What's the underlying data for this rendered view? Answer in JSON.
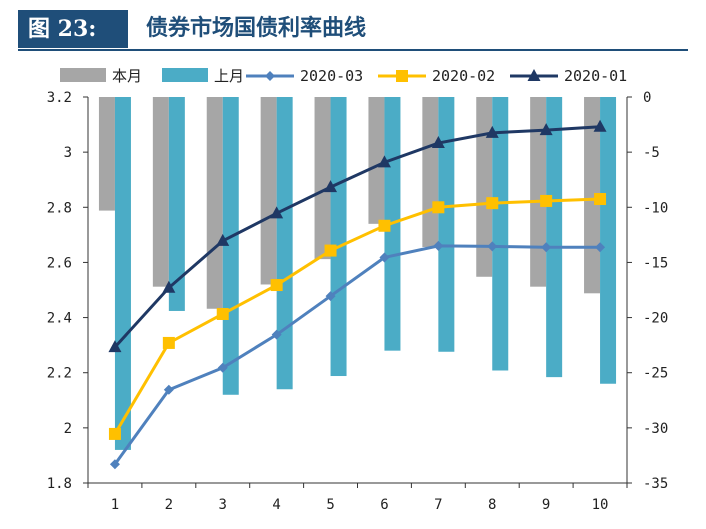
{
  "header": {
    "figure_label": "图 23:",
    "title": "债券市场国债利率曲线"
  },
  "chart_data": {
    "type": "bar+line",
    "categories": [
      "1",
      "2",
      "3",
      "4",
      "5",
      "6",
      "7",
      "8",
      "9",
      "10"
    ],
    "left_axis": {
      "min": 1.8,
      "max": 3.2,
      "step": 0.2,
      "tick_labels": [
        "1.8",
        "2",
        "2.2",
        "2.4",
        "2.6",
        "2.8",
        "3",
        "3.2"
      ]
    },
    "right_axis": {
      "min": -35,
      "max": 0,
      "step": 5,
      "tick_labels": [
        "-35",
        "-30",
        "-25",
        "-20",
        "-15",
        "-10",
        "-5",
        "0"
      ]
    },
    "bar_series": [
      {
        "name": "本月",
        "axis": "right",
        "color": "#a6a6a6",
        "values": [
          -10.3,
          -17.2,
          -19.2,
          -17.0,
          -14.7,
          -11.5,
          -13.6,
          -16.3,
          -17.2,
          -17.8
        ]
      },
      {
        "name": "上月",
        "axis": "right",
        "color": "#4bacc6",
        "values": [
          -32.0,
          -19.4,
          -27.0,
          -26.5,
          -25.3,
          -23.0,
          -23.1,
          -24.8,
          -25.4,
          -26.0
        ]
      }
    ],
    "line_series": [
      {
        "name": "2020-03",
        "axis": "left",
        "color": "#4f81bd",
        "marker": "diamond",
        "values": [
          1.868,
          2.138,
          2.218,
          2.338,
          2.478,
          2.618,
          2.66,
          2.658,
          2.655,
          2.655
        ]
      },
      {
        "name": "2020-02",
        "axis": "left",
        "color": "#ffc000",
        "marker": "square",
        "values": [
          1.978,
          2.308,
          2.413,
          2.518,
          2.643,
          2.733,
          2.8,
          2.815,
          2.823,
          2.83
        ]
      },
      {
        "name": "2020-01",
        "axis": "left",
        "color": "#1f3864",
        "marker": "triangle",
        "values": [
          2.293,
          2.508,
          2.678,
          2.778,
          2.873,
          2.963,
          3.033,
          3.07,
          3.08,
          3.092
        ]
      }
    ],
    "legend_position": "top"
  }
}
